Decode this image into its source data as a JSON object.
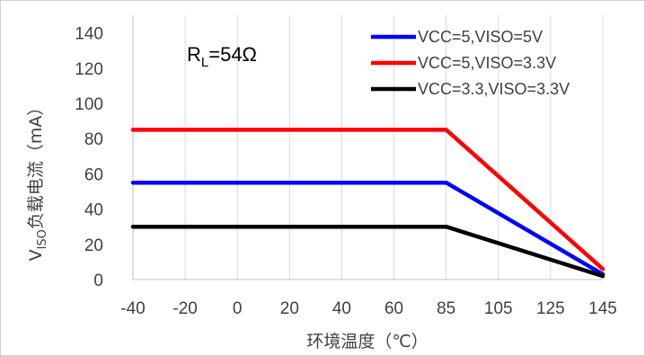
{
  "chart_data": {
    "type": "line",
    "x": [
      -40,
      85,
      145
    ],
    "x_ticks": [
      "-40",
      "-20",
      "0",
      "20",
      "40",
      "60",
      "85",
      "105",
      "125",
      "145"
    ],
    "y_ticks": [
      "0",
      "20",
      "40",
      "60",
      "80",
      "100",
      "120",
      "140"
    ],
    "ylim": [
      0,
      150
    ],
    "grid": "vertical",
    "legend_position": "top-right",
    "xlabel": "环境温度（℃）",
    "ylabel": {
      "main": "V",
      "sub": "ISO",
      "rest": "负载电流（mA）"
    },
    "annotation": {
      "main": "R",
      "sub": "L",
      "rest": "=54Ω"
    },
    "series": [
      {
        "name": "VCC=5,VISO=5V",
        "color": "#0000ff",
        "values": [
          55,
          55,
          3
        ]
      },
      {
        "name": "VCC=5,VISO=3.3V",
        "color": "#ff0000",
        "values": [
          85,
          85,
          6
        ]
      },
      {
        "name": "VCC=3.3,VISO=3.3V",
        "color": "#000000",
        "values": [
          30,
          30,
          2
        ]
      }
    ]
  }
}
